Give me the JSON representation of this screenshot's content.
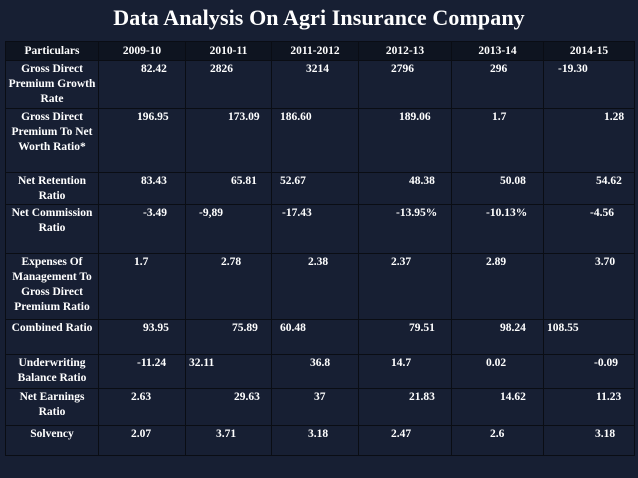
{
  "title": "Data Analysis On Agri Insurance Company",
  "table": {
    "headers": [
      "Particulars",
      "2009-10",
      "2010-11",
      "2011-2012",
      "2012-13",
      "2013-14",
      "2014-15"
    ],
    "rows": [
      {
        "label": "Gross Direct Premium Growth Rate",
        "values": [
          "82.42",
          "2826",
          "3214",
          "2796",
          "296",
          "-19.30"
        ]
      },
      {
        "label": "Gross Direct Premium To Net Worth Ratio*",
        "values": [
          "196.95",
          "173.09",
          "186.60",
          "189.06",
          "1.7",
          "1.28"
        ]
      },
      {
        "label": "Net Retention Ratio",
        "values": [
          "83.43",
          "65.81",
          "52.67",
          "48.38",
          "50.08",
          "54.62"
        ]
      },
      {
        "label": "Net Commission Ratio",
        "values": [
          "-3.49",
          "-9,89",
          "-17.43",
          "-13.95%",
          "-10.13%",
          "-4.56"
        ]
      },
      {
        "label": "Expenses Of Management To Gross Direct Premium Ratio",
        "values": [
          "1.7",
          "2.78",
          "2.38",
          "2.37",
          "2.89",
          "3.70"
        ]
      },
      {
        "label": "Combined Ratio",
        "values": [
          "93.95",
          "75.89",
          "60.48",
          "79.51",
          "98.24",
          "108.55"
        ]
      },
      {
        "label": "Underwriting Balance Ratio",
        "values": [
          "-11.24",
          "32.11",
          "36.8",
          "14.7",
          "0.02",
          "-0.09"
        ]
      },
      {
        "label": "Net Earnings Ratio",
        "values": [
          "2.63",
          "29.63",
          "37",
          "21.83",
          "14.62",
          "11.23"
        ]
      },
      {
        "label": "Solvency",
        "values": [
          "2.07",
          "3.71",
          "3.18",
          "2.47",
          "2.6",
          "3.18"
        ]
      }
    ]
  },
  "colors": {
    "background": "#171f33",
    "header_row": "#0e1420",
    "grid_lines": "#0a0d14",
    "text": "#ffffff"
  }
}
